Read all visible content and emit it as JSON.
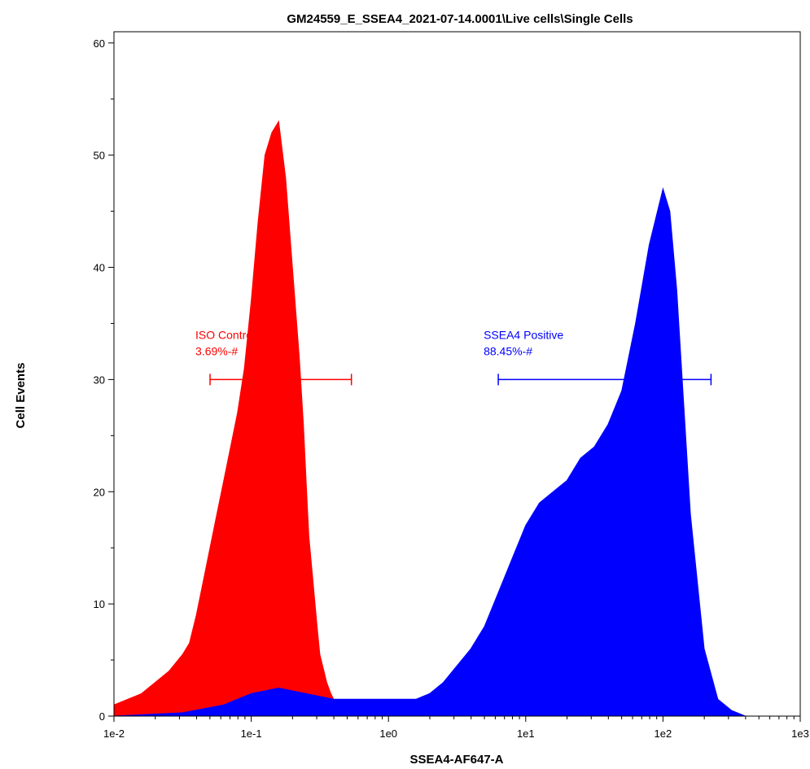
{
  "chart_data": {
    "type": "area",
    "title": "GM24559_E_SSEA4_2021-07-14.0001\\Live cells\\Single Cells",
    "xlabel": "SSEA4-AF647-A",
    "ylabel": "Cell Events",
    "x_scale": "log",
    "xlim": [
      -2,
      3
    ],
    "ylim": [
      0,
      61
    ],
    "x_ticks": [
      "1e-2",
      "1e-1",
      "1e0",
      "1e1",
      "1e2",
      "1e3"
    ],
    "x_tick_values": [
      -2,
      -1,
      0,
      1,
      2,
      3
    ],
    "y_ticks": [
      "0",
      "10",
      "20",
      "30",
      "40",
      "50",
      "60"
    ],
    "y_tick_values": [
      0,
      10,
      20,
      30,
      40,
      50,
      60
    ],
    "grid": false,
    "series": [
      {
        "color": "#ff0000",
        "x_log10": [
          -2.0,
          -1.9,
          -1.8,
          -1.7,
          -1.6,
          -1.5,
          -1.45,
          -1.4,
          -1.35,
          -1.3,
          -1.25,
          -1.2,
          -1.15,
          -1.1,
          -1.05,
          -1.0,
          -0.95,
          -0.9,
          -0.85,
          -0.8,
          -0.75,
          -0.7,
          -0.65,
          -0.62,
          -0.6,
          -0.58,
          -0.55,
          -0.52,
          -0.5,
          -0.47,
          -0.45,
          -0.42,
          -0.4,
          -0.37,
          -0.35,
          -0.3,
          -0.25,
          -0.2
        ],
        "values": [
          1,
          1.5,
          2,
          3,
          4,
          5.5,
          6.5,
          9,
          12,
          15,
          18,
          21,
          24,
          27,
          31,
          37,
          44,
          50,
          52,
          53,
          48,
          40,
          32,
          26,
          21,
          16,
          12,
          8,
          5.5,
          4,
          3,
          2,
          1.5,
          1,
          0.8,
          0.5,
          0.3,
          0
        ]
      },
      {
        "color": "#0000ff",
        "x_log10": [
          -2.0,
          -1.5,
          -1.2,
          -1.0,
          -0.8,
          -0.6,
          -0.4,
          -0.2,
          0.0,
          0.1,
          0.2,
          0.3,
          0.4,
          0.5,
          0.6,
          0.7,
          0.8,
          0.9,
          1.0,
          1.1,
          1.2,
          1.3,
          1.4,
          1.5,
          1.6,
          1.7,
          1.8,
          1.9,
          2.0,
          2.05,
          2.1,
          2.15,
          2.2,
          2.3,
          2.4,
          2.5,
          2.6,
          2.9
        ],
        "values": [
          0,
          0.3,
          1,
          2,
          2.5,
          2,
          1.5,
          1.5,
          1.5,
          1.5,
          1.5,
          2,
          3,
          4.5,
          6,
          8,
          11,
          14,
          17,
          19,
          20,
          21,
          23,
          24,
          26,
          29,
          35,
          42,
          47,
          45,
          38,
          28,
          18,
          6,
          1.5,
          0.5,
          0,
          0
        ]
      }
    ],
    "annotations": [
      {
        "name": "ISO Control",
        "value_text": "3.69%-#",
        "x_range": [
          -1.3,
          -0.27
        ],
        "y": 30,
        "color": "#ff0000"
      },
      {
        "name": "SSEA4 Positive",
        "value_text": "88.45%-#",
        "x_range": [
          0.8,
          2.35
        ],
        "y": 30,
        "color": "#0000ff"
      }
    ]
  }
}
